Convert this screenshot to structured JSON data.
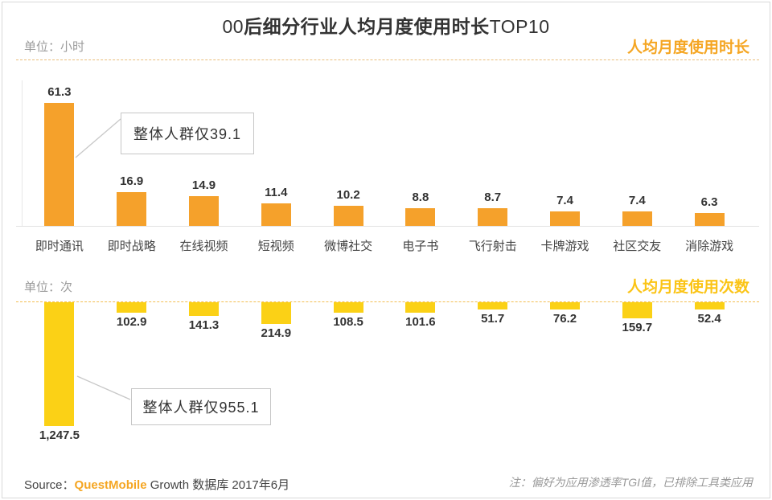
{
  "title": {
    "prefix": "00",
    "main": "后细分行业人均月度使用时长",
    "suffix": "TOP10"
  },
  "colors": {
    "bar_orange": "#F5A12B",
    "bar_yellow": "#FBD116",
    "accent_orange": "#F5A623",
    "accent_yellow": "#FBC416"
  },
  "chart_data": [
    {
      "type": "bar",
      "title": "人均月度使用时长",
      "unit_label": "单位：小时",
      "categories": [
        "即时通讯",
        "即时战略",
        "在线视频",
        "短视频",
        "微博社交",
        "电子书",
        "飞行射击",
        "卡牌游戏",
        "社区交友",
        "消除游戏"
      ],
      "values": [
        61.3,
        16.9,
        14.9,
        11.4,
        10.2,
        8.8,
        8.7,
        7.4,
        7.4,
        6.3
      ],
      "value_labels": [
        "61.3",
        "16.9",
        "14.9",
        "11.4",
        "10.2",
        "8.8",
        "8.7",
        "7.4",
        "7.4",
        "6.3"
      ],
      "annotation": "整体人群仅39.1",
      "bar_color": "#F5A12B",
      "direction": "up",
      "ylim": [
        0,
        61.3
      ],
      "grid": false,
      "legend": "none"
    },
    {
      "type": "bar",
      "title": "人均月度使用次数",
      "unit_label": "单位：次",
      "categories": [
        "即时通讯",
        "即时战略",
        "在线视频",
        "短视频",
        "微博社交",
        "电子书",
        "飞行射击",
        "卡牌游戏",
        "社区交友",
        "消除游戏"
      ],
      "values": [
        1247.5,
        102.9,
        141.3,
        214.9,
        108.5,
        101.6,
        51.7,
        76.2,
        159.7,
        52.4
      ],
      "value_labels": [
        "1,247.5",
        "102.9",
        "141.3",
        "214.9",
        "108.5",
        "101.6",
        "51.7",
        "76.2",
        "159.7",
        "52.4"
      ],
      "annotation": "整体人群仅955.1",
      "bar_color": "#FBD116",
      "direction": "down",
      "ylim": [
        0,
        1247.5
      ],
      "grid": false,
      "legend": "none"
    }
  ],
  "footer": {
    "source_label": "Source：",
    "source_brand": "QuestMobile",
    "source_rest": " Growth 数据库 2017年6月",
    "note": "注：偏好为应用渗透率TGI值，已排除工具类应用"
  }
}
